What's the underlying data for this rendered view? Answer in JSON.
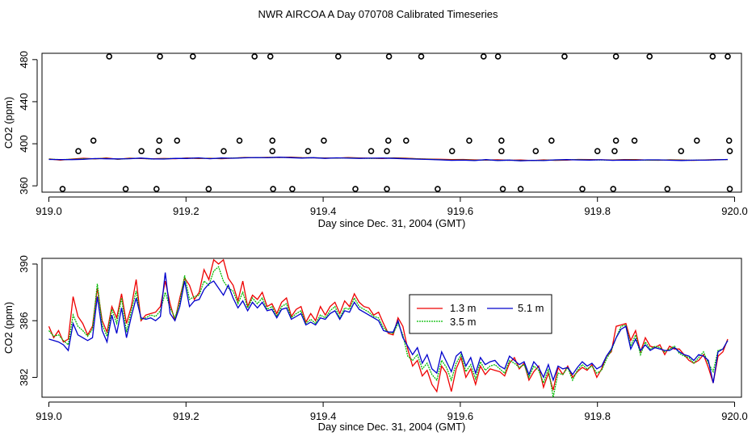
{
  "title": "NWR AIRCOA A  Day 070708  Calibrated Timeseries",
  "colors": {
    "s1": "#ee0000",
    "s2": "#00bb00",
    "s3": "#0000cc",
    "axis": "#000000"
  },
  "chart_data": [
    {
      "type": "scatter+line",
      "ylabel": "CO2 (ppm)",
      "xlabel": "Day since Dec. 31, 2004 (GMT)",
      "xlim": [
        918.99,
        920.01
      ],
      "ylim": [
        354,
        486
      ],
      "xticks": [
        919.0,
        919.2,
        919.4,
        919.6,
        919.8,
        920.0
      ],
      "xtick_labels": [
        "919.0",
        "919.2",
        "919.4",
        "919.6",
        "919.8",
        "920.0"
      ],
      "yticks": [
        360,
        400,
        440,
        480
      ],
      "ytick_labels": [
        "360",
        "400",
        "440",
        "480"
      ],
      "points": [
        {
          "x": 919.088,
          "y": 483
        },
        {
          "x": 919.162,
          "y": 483
        },
        {
          "x": 919.21,
          "y": 483
        },
        {
          "x": 919.3,
          "y": 483
        },
        {
          "x": 919.323,
          "y": 483
        },
        {
          "x": 919.422,
          "y": 483
        },
        {
          "x": 919.496,
          "y": 483
        },
        {
          "x": 919.543,
          "y": 483
        },
        {
          "x": 919.634,
          "y": 483
        },
        {
          "x": 919.655,
          "y": 483
        },
        {
          "x": 919.752,
          "y": 483
        },
        {
          "x": 919.827,
          "y": 483
        },
        {
          "x": 919.876,
          "y": 483
        },
        {
          "x": 919.968,
          "y": 483
        },
        {
          "x": 919.99,
          "y": 483
        },
        {
          "x": 919.065,
          "y": 403
        },
        {
          "x": 919.161,
          "y": 403
        },
        {
          "x": 919.187,
          "y": 403
        },
        {
          "x": 919.278,
          "y": 403
        },
        {
          "x": 919.326,
          "y": 403
        },
        {
          "x": 919.401,
          "y": 403
        },
        {
          "x": 919.495,
          "y": 403
        },
        {
          "x": 919.521,
          "y": 403
        },
        {
          "x": 919.613,
          "y": 403
        },
        {
          "x": 919.66,
          "y": 403
        },
        {
          "x": 919.733,
          "y": 403
        },
        {
          "x": 919.827,
          "y": 403
        },
        {
          "x": 919.854,
          "y": 403
        },
        {
          "x": 919.945,
          "y": 403
        },
        {
          "x": 919.992,
          "y": 403
        },
        {
          "x": 919.043,
          "y": 393
        },
        {
          "x": 919.135,
          "y": 393
        },
        {
          "x": 919.16,
          "y": 393
        },
        {
          "x": 919.255,
          "y": 393
        },
        {
          "x": 919.326,
          "y": 393
        },
        {
          "x": 919.378,
          "y": 393
        },
        {
          "x": 919.47,
          "y": 393
        },
        {
          "x": 919.493,
          "y": 393
        },
        {
          "x": 919.588,
          "y": 393
        },
        {
          "x": 919.66,
          "y": 393
        },
        {
          "x": 919.71,
          "y": 393
        },
        {
          "x": 919.8,
          "y": 393
        },
        {
          "x": 919.825,
          "y": 393
        },
        {
          "x": 919.922,
          "y": 393
        },
        {
          "x": 919.993,
          "y": 393
        },
        {
          "x": 919.02,
          "y": 357
        },
        {
          "x": 919.112,
          "y": 357
        },
        {
          "x": 919.157,
          "y": 357
        },
        {
          "x": 919.233,
          "y": 357
        },
        {
          "x": 919.327,
          "y": 357
        },
        {
          "x": 919.355,
          "y": 357
        },
        {
          "x": 919.447,
          "y": 357
        },
        {
          "x": 919.493,
          "y": 357
        },
        {
          "x": 919.567,
          "y": 357
        },
        {
          "x": 919.662,
          "y": 357
        },
        {
          "x": 919.688,
          "y": 357
        },
        {
          "x": 919.778,
          "y": 357
        },
        {
          "x": 919.823,
          "y": 357
        },
        {
          "x": 919.902,
          "y": 357
        },
        {
          "x": 919.993,
          "y": 357
        }
      ],
      "series": [
        {
          "name": "1.3 m",
          "values": [
            385.6,
            384.4,
            385.5,
            386.2,
            385.6,
            386.5,
            385.2,
            386.3,
            385.9,
            385.7,
            386.0,
            385.8,
            386.5,
            386.0,
            386.2,
            385.8,
            386.3,
            387.0,
            386.8,
            387.1,
            386.9,
            387.3,
            386.8,
            386.6,
            386.5,
            386.3,
            386.9,
            386.5,
            386.2,
            386.0,
            386.6,
            386.3,
            385.8,
            385.5,
            385.2,
            384.9,
            385.1,
            384.7,
            384.5,
            384.8,
            384.3,
            384.6,
            384.0,
            384.7,
            384.2,
            384.5,
            385.1,
            385.0,
            384.8,
            384.6,
            384.9,
            385.0,
            384.5,
            384.3,
            384.8,
            384.6,
            384.2,
            384.6,
            384.9,
            385.0
          ]
        },
        {
          "name": "3.5 m",
          "values": [
            385.4,
            384.9,
            385.2,
            385.7,
            385.8,
            386.1,
            385.3,
            386.0,
            386.2,
            385.5,
            385.8,
            386.0,
            386.2,
            386.3,
            386.0,
            386.1,
            386.4,
            386.8,
            386.7,
            386.9,
            387.0,
            387.0,
            386.6,
            386.7,
            386.3,
            386.4,
            386.6,
            386.3,
            386.1,
            386.2,
            386.4,
            386.0,
            385.6,
            385.3,
            384.9,
            384.5,
            384.7,
            384.3,
            384.6,
            384.2,
            384.4,
            384.1,
            384.0,
            384.3,
            384.5,
            384.7,
            384.9,
            384.7,
            384.6,
            384.4,
            384.7,
            384.6,
            384.4,
            384.5,
            384.6,
            384.4,
            384.3,
            384.5,
            384.8,
            385.0
          ]
        },
        {
          "name": "5.1 m",
          "values": [
            385.1,
            385.0,
            384.9,
            385.2,
            385.9,
            385.7,
            385.6,
            385.8,
            386.4,
            385.6,
            385.5,
            386.1,
            386.0,
            386.6,
            385.8,
            386.5,
            386.2,
            386.6,
            386.9,
            386.7,
            387.2,
            386.8,
            386.4,
            386.8,
            386.1,
            386.6,
            386.3,
            386.1,
            386.3,
            386.4,
            386.1,
            385.7,
            385.4,
            385.1,
            384.7,
            384.2,
            384.4,
            384.0,
            384.9,
            384.0,
            384.5,
            383.8,
            384.2,
            384.0,
            384.7,
            384.9,
            384.6,
            384.5,
            384.8,
            384.2,
            384.5,
            384.3,
            384.7,
            384.7,
            384.3,
            384.1,
            384.4,
            384.4,
            384.7,
            385.1
          ]
        }
      ]
    },
    {
      "type": "line",
      "ylabel": "CO2 (ppm)",
      "xlabel": "Day since Dec. 31, 2004 (GMT)",
      "xlim": [
        918.99,
        920.01
      ],
      "ylim": [
        380.6,
        390.4
      ],
      "xticks": [
        919.0,
        919.2,
        919.4,
        919.6,
        919.8,
        920.0
      ],
      "xtick_labels": [
        "919.0",
        "919.2",
        "919.4",
        "919.6",
        "919.8",
        "920.0"
      ],
      "yticks": [
        382,
        386,
        390
      ],
      "ytick_labels": [
        "382",
        "386",
        "390"
      ],
      "legend": {
        "position": "center-right",
        "labels": [
          "1.3 m",
          "3.5 m",
          "5.1 m"
        ]
      },
      "series": [
        {
          "name": "1.3 m",
          "values": [
            385.6,
            384.8,
            385.3,
            384.5,
            384.7,
            387.7,
            386.3,
            385.8,
            385.0,
            385.6,
            388.3,
            386.0,
            385.2,
            387.0,
            386.2,
            387.9,
            385.8,
            387.0,
            388.9,
            386.0,
            386.4,
            386.5,
            386.6,
            387.0,
            388.8,
            387.2,
            386.0,
            387.6,
            389.0,
            388.5,
            387.5,
            388.0,
            389.6,
            388.9,
            390.3,
            390.0,
            390.3,
            389.0,
            388.5,
            387.4,
            388.8,
            387.0,
            387.8,
            387.5,
            388.0,
            387.0,
            387.2,
            386.5,
            387.3,
            387.6,
            386.3,
            386.8,
            387.0,
            385.9,
            386.5,
            386.0,
            387.0,
            386.4,
            387.0,
            387.3,
            386.5,
            387.4,
            387.0,
            387.9,
            387.3,
            387.0,
            386.9,
            386.4,
            386.6,
            385.8,
            385.1,
            385.0,
            386.2,
            385.6,
            384.0,
            382.8,
            383.2,
            382.1,
            382.5,
            381.5,
            381.0,
            382.8,
            382.3,
            381.0,
            382.6,
            383.4,
            382.0,
            382.6,
            381.5,
            382.8,
            382.2,
            382.6,
            382.5,
            382.4,
            382.1,
            383.0,
            383.4,
            382.6,
            383.0,
            381.8,
            382.4,
            382.8,
            381.3,
            382.3,
            381.1,
            382.7,
            382.2,
            382.8,
            382.0,
            382.4,
            382.7,
            382.5,
            382.9,
            382.0,
            382.6,
            383.5,
            383.8,
            385.6,
            385.7,
            385.8,
            384.6,
            385.3,
            383.8,
            384.8,
            384.2,
            384.1,
            384.3,
            383.6,
            384.2,
            384.0,
            384.0,
            383.6,
            383.2,
            383.0,
            383.2,
            383.6,
            382.7,
            381.6,
            383.5,
            383.8,
            384.7
          ]
        },
        {
          "name": "3.5 m",
          "values": [
            385.3,
            384.9,
            385.0,
            384.6,
            384.3,
            386.4,
            385.6,
            385.3,
            384.9,
            385.4,
            388.6,
            385.7,
            384.9,
            386.8,
            385.8,
            387.6,
            385.2,
            386.7,
            388.1,
            386.1,
            386.2,
            386.4,
            386.3,
            386.7,
            388.0,
            386.9,
            386.2,
            387.3,
            389.2,
            387.5,
            387.7,
            387.8,
            388.8,
            388.5,
            389.5,
            389.8,
            388.8,
            388.3,
            388.1,
            387.2,
            388.0,
            386.9,
            387.6,
            387.2,
            387.6,
            386.8,
            387.0,
            386.3,
            387.0,
            387.2,
            386.2,
            386.5,
            386.7,
            385.8,
            386.1,
            385.8,
            386.4,
            386.2,
            386.7,
            387.0,
            386.2,
            386.9,
            386.8,
            387.6,
            387.0,
            386.8,
            386.6,
            386.3,
            386.2,
            385.5,
            385.2,
            385.1,
            385.8,
            385.0,
            383.5,
            383.2,
            383.6,
            382.6,
            383.0,
            382.2,
            381.8,
            383.2,
            382.7,
            381.8,
            383.0,
            383.6,
            382.4,
            382.9,
            381.9,
            383.1,
            382.5,
            382.8,
            382.9,
            382.6,
            382.3,
            383.2,
            383.0,
            382.7,
            382.9,
            382.0,
            382.8,
            382.5,
            381.6,
            382.6,
            380.6,
            382.3,
            382.2,
            382.7,
            381.8,
            382.5,
            382.9,
            382.6,
            382.8,
            382.3,
            382.5,
            383.3,
            383.9,
            384.8,
            385.6,
            385.7,
            384.2,
            385.0,
            383.6,
            384.5,
            384.0,
            384.2,
            384.1,
            383.8,
            384.0,
            384.2,
            383.7,
            383.5,
            383.4,
            383.0,
            383.4,
            383.8,
            383.0,
            382.4,
            383.9,
            384.0,
            384.6
          ]
        },
        {
          "name": "5.1 m",
          "values": [
            384.7,
            384.6,
            384.5,
            384.3,
            383.9,
            385.8,
            385.0,
            384.8,
            384.6,
            384.8,
            387.7,
            385.3,
            384.5,
            386.4,
            385.1,
            386.9,
            384.8,
            386.3,
            387.6,
            386.2,
            386.1,
            386.2,
            386.0,
            386.3,
            389.4,
            386.5,
            386.0,
            387.0,
            388.8,
            387.0,
            387.4,
            387.5,
            388.2,
            388.6,
            388.8,
            388.3,
            387.8,
            388.5,
            387.6,
            386.9,
            387.4,
            386.7,
            387.3,
            386.9,
            387.3,
            386.7,
            386.8,
            386.2,
            386.8,
            386.9,
            386.1,
            386.3,
            386.5,
            385.7,
            385.9,
            385.7,
            386.2,
            386.1,
            386.5,
            386.7,
            386.1,
            386.7,
            386.6,
            387.3,
            386.8,
            386.6,
            386.4,
            386.2,
            386.0,
            385.3,
            385.2,
            385.2,
            386.0,
            384.8,
            384.2,
            383.6,
            384.1,
            383.0,
            383.6,
            382.6,
            382.3,
            383.8,
            383.1,
            382.4,
            383.5,
            383.8,
            382.8,
            383.4,
            382.3,
            383.4,
            382.9,
            383.1,
            383.2,
            382.8,
            382.6,
            383.5,
            383.2,
            382.9,
            383.1,
            382.2,
            383.1,
            382.7,
            382.0,
            382.9,
            381.8,
            382.8,
            382.6,
            382.7,
            382.2,
            382.7,
            383.1,
            382.8,
            383.0,
            382.6,
            382.8,
            383.5,
            384.0,
            384.8,
            385.4,
            385.6,
            384.0,
            384.7,
            383.9,
            384.3,
            383.9,
            384.1,
            384.0,
            383.9,
            383.9,
            384.1,
            383.8,
            383.6,
            383.5,
            383.2,
            383.6,
            383.5,
            383.2,
            381.6,
            383.8,
            384.0,
            384.6
          ]
        }
      ]
    }
  ]
}
